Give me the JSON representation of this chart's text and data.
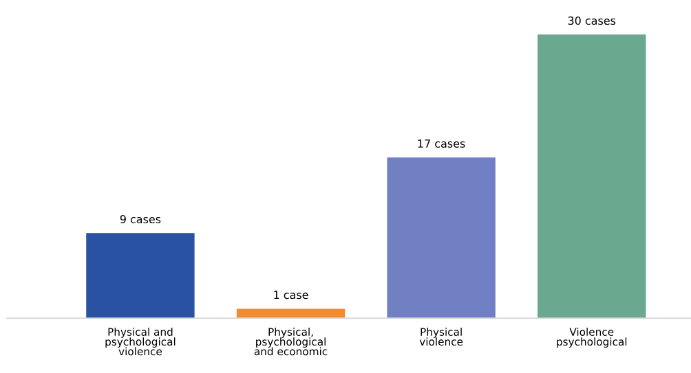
{
  "chart_data": {
    "type": "bar",
    "categories": [
      "Physical and\npsychological\nviolence",
      "Physical,\npsychological\nand economic",
      "Physical\nviolence",
      "Violence\npsychological"
    ],
    "values": [
      9,
      1,
      17,
      30
    ],
    "colors": [
      "#2a52a3",
      "#f28c33",
      "#7180c2",
      "#6aa88f"
    ],
    "value_labels": [
      "9 cases",
      "1 case",
      "17 cases",
      "30 cases"
    ],
    "grid": false,
    "legend": false
  }
}
